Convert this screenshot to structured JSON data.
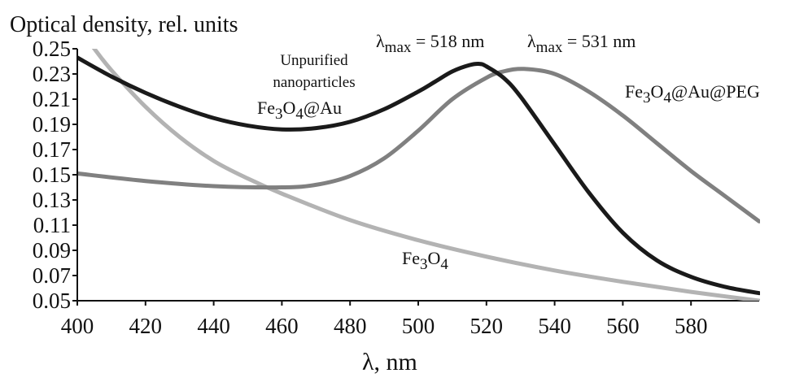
{
  "chart_data": {
    "type": "line",
    "ylabel": "Optical density, rel. units",
    "xlabel_symbol": "λ",
    "xlabel_unit": ", nm",
    "xlim": [
      400,
      600
    ],
    "ylim": [
      0.05,
      0.25
    ],
    "x_ticks": [
      400,
      420,
      440,
      460,
      480,
      500,
      520,
      540,
      560,
      580
    ],
    "y_ticks": [
      "0.05",
      "0.07",
      "0.09",
      "0.11",
      "0.13",
      "0.15",
      "0.17",
      "0.19",
      "0.21",
      "0.23",
      "0.25"
    ],
    "grid": false,
    "series": [
      {
        "name": "Fe3O4@Au",
        "color": "#1a1a1a",
        "x": [
          400,
          410,
          420,
          430,
          440,
          450,
          460,
          470,
          480,
          490,
          500,
          505,
          510,
          515,
          518,
          520,
          525,
          530,
          540,
          550,
          560,
          570,
          580,
          590,
          600
        ],
        "y": [
          0.243,
          0.228,
          0.215,
          0.204,
          0.195,
          0.189,
          0.186,
          0.187,
          0.192,
          0.202,
          0.216,
          0.224,
          0.232,
          0.237,
          0.238,
          0.236,
          0.227,
          0.212,
          0.174,
          0.136,
          0.104,
          0.082,
          0.069,
          0.061,
          0.056
        ]
      },
      {
        "name": "Fe3O4@Au@PEG",
        "color": "#808080",
        "x": [
          400,
          420,
          440,
          460,
          470,
          480,
          490,
          500,
          510,
          520,
          525,
          531,
          540,
          550,
          560,
          570,
          580,
          590,
          600
        ],
        "y": [
          0.151,
          0.145,
          0.141,
          0.14,
          0.142,
          0.149,
          0.163,
          0.185,
          0.21,
          0.227,
          0.232,
          0.234,
          0.23,
          0.216,
          0.197,
          0.175,
          0.153,
          0.133,
          0.113
        ]
      },
      {
        "name": "Fe3O4",
        "color": "#b3b3b3",
        "x": [
          400,
          405,
          410,
          420,
          430,
          440,
          450,
          460,
          480,
          500,
          520,
          540,
          560,
          580,
          600
        ],
        "y": [
          0.268,
          0.25,
          0.233,
          0.204,
          0.18,
          0.161,
          0.147,
          0.135,
          0.114,
          0.098,
          0.085,
          0.074,
          0.065,
          0.057,
          0.05
        ]
      }
    ],
    "annotations": {
      "lmax1_sym": "λ",
      "lmax1_sub": "max",
      "lmax1_val": " = 518 nm",
      "lmax2_sym": "λ",
      "lmax2_sub": "max",
      "lmax2_val": " = 531 nm",
      "unpurified_line1": "Unpurified",
      "unpurified_line2": "nanoparticles",
      "feau_a": "Fe",
      "feau_sub1": "3",
      "feau_b": "O",
      "feau_sub2": "4",
      "feau_c": "@Au",
      "peg_a": "Fe",
      "peg_sub1": "3",
      "peg_b": "O",
      "peg_sub2": "4",
      "peg_c": "@Au@PEG",
      "fe3o4_a": "Fe",
      "fe3o4_sub1": "3",
      "fe3o4_b": "O",
      "fe3o4_sub2": "4"
    }
  }
}
